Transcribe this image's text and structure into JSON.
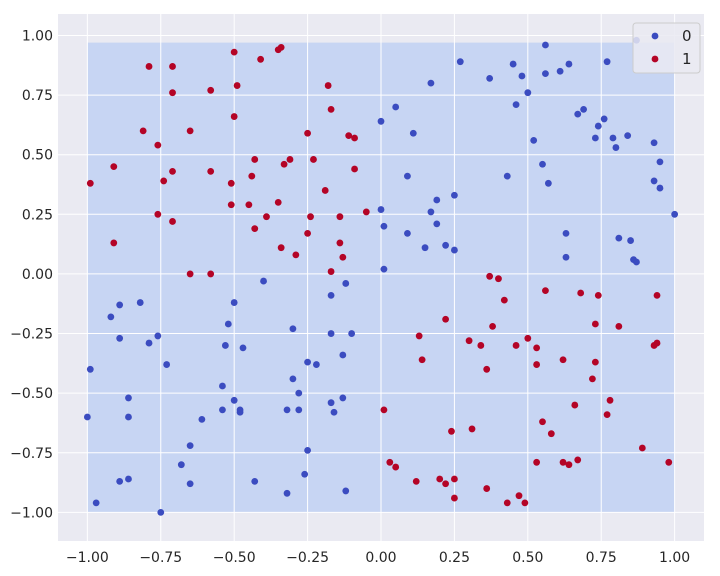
{
  "chart_data": {
    "type": "scatter",
    "title": "",
    "xlabel": "",
    "ylabel": "",
    "xlim": [
      -1.1,
      1.1
    ],
    "ylim": [
      -1.12,
      1.09
    ],
    "xticks": [
      -1.0,
      -0.75,
      -0.5,
      -0.25,
      0.0,
      0.25,
      0.5,
      0.75,
      1.0
    ],
    "xtick_labels": [
      "−1.00",
      "−0.75",
      "−0.50",
      "−0.25",
      "0.00",
      "0.25",
      "0.50",
      "0.75",
      "1.00"
    ],
    "yticks": [
      1.0,
      0.75,
      0.5,
      0.25,
      0.0,
      -0.25,
      -0.5,
      -0.75,
      -1.0
    ],
    "ytick_labels": [
      "1.00",
      "0.75",
      "0.50",
      "0.25",
      "0.00",
      "−0.25",
      "−0.50",
      "−0.75",
      "−1.00"
    ],
    "grid": true,
    "legend_position": "top-right",
    "background_region": {
      "x": [
        -1.0,
        1.0
      ],
      "y": [
        -1.0,
        0.97
      ],
      "color": "#c7d5f3"
    },
    "colors": {
      "panel": "#eaeaf2",
      "grid": "#ffffff",
      "class0": "#3b4cc0",
      "class1": "#b40426"
    },
    "series": [
      {
        "name": "0",
        "color": "#3b4cc0",
        "points": [
          [
            -1.0,
            -0.6
          ],
          [
            -0.99,
            -0.4
          ],
          [
            -0.97,
            -0.96
          ],
          [
            -0.92,
            -0.18
          ],
          [
            -0.89,
            -0.13
          ],
          [
            -0.89,
            -0.27
          ],
          [
            -0.89,
            -0.87
          ],
          [
            -0.86,
            -0.52
          ],
          [
            -0.86,
            -0.6
          ],
          [
            -0.86,
            -0.86
          ],
          [
            -0.82,
            -0.12
          ],
          [
            -0.79,
            -0.29
          ],
          [
            -0.76,
            -0.26
          ],
          [
            -0.75,
            -1.0
          ],
          [
            -0.73,
            -0.38
          ],
          [
            -0.68,
            -0.8
          ],
          [
            -0.65,
            -0.72
          ],
          [
            -0.65,
            -0.88
          ],
          [
            -0.61,
            -0.61
          ],
          [
            -0.54,
            -0.47
          ],
          [
            -0.54,
            -0.57
          ],
          [
            -0.53,
            -0.3
          ],
          [
            -0.52,
            -0.21
          ],
          [
            -0.5,
            -0.12
          ],
          [
            -0.5,
            -0.53
          ],
          [
            -0.48,
            -0.58
          ],
          [
            -0.48,
            -0.57
          ],
          [
            -0.47,
            -0.31
          ],
          [
            -0.43,
            -0.87
          ],
          [
            -0.4,
            -0.03
          ],
          [
            -0.32,
            -0.57
          ],
          [
            -0.32,
            -0.92
          ],
          [
            -0.3,
            -0.23
          ],
          [
            -0.3,
            -0.44
          ],
          [
            -0.28,
            -0.5
          ],
          [
            -0.28,
            -0.57
          ],
          [
            -0.26,
            -0.84
          ],
          [
            -0.25,
            -0.37
          ],
          [
            -0.25,
            -0.74
          ],
          [
            -0.22,
            -0.38
          ],
          [
            -0.17,
            -0.09
          ],
          [
            -0.17,
            -0.25
          ],
          [
            -0.17,
            -0.54
          ],
          [
            -0.16,
            -0.58
          ],
          [
            -0.13,
            -0.34
          ],
          [
            -0.13,
            -0.52
          ],
          [
            -0.12,
            -0.04
          ],
          [
            -0.12,
            -0.91
          ],
          [
            -0.1,
            -0.25
          ],
          [
            0.0,
            0.64
          ],
          [
            0.0,
            0.27
          ],
          [
            0.01,
            0.2
          ],
          [
            0.01,
            0.02
          ],
          [
            0.05,
            0.7
          ],
          [
            0.09,
            0.41
          ],
          [
            0.09,
            0.17
          ],
          [
            0.11,
            0.59
          ],
          [
            0.15,
            0.11
          ],
          [
            0.17,
            0.8
          ],
          [
            0.17,
            0.26
          ],
          [
            0.19,
            0.31
          ],
          [
            0.19,
            0.21
          ],
          [
            0.22,
            0.12
          ],
          [
            0.25,
            0.33
          ],
          [
            0.25,
            0.1
          ],
          [
            0.27,
            0.89
          ],
          [
            0.37,
            0.82
          ],
          [
            0.43,
            0.41
          ],
          [
            0.45,
            0.88
          ],
          [
            0.46,
            0.71
          ],
          [
            0.48,
            0.83
          ],
          [
            0.5,
            0.76
          ],
          [
            0.52,
            0.56
          ],
          [
            0.55,
            0.46
          ],
          [
            0.56,
            0.84
          ],
          [
            0.56,
            0.96
          ],
          [
            0.57,
            0.38
          ],
          [
            0.61,
            0.85
          ],
          [
            0.63,
            0.07
          ],
          [
            0.63,
            0.17
          ],
          [
            0.64,
            0.88
          ],
          [
            0.67,
            0.67
          ],
          [
            0.69,
            0.69
          ],
          [
            0.73,
            0.57
          ],
          [
            0.74,
            0.62
          ],
          [
            0.76,
            0.65
          ],
          [
            0.77,
            0.89
          ],
          [
            0.79,
            0.57
          ],
          [
            0.8,
            0.53
          ],
          [
            0.81,
            0.15
          ],
          [
            0.84,
            0.58
          ],
          [
            0.85,
            0.14
          ],
          [
            0.86,
            0.06
          ],
          [
            0.87,
            0.05
          ],
          [
            0.87,
            0.98
          ],
          [
            0.93,
            0.55
          ],
          [
            0.93,
            0.39
          ],
          [
            0.95,
            0.47
          ],
          [
            0.95,
            0.36
          ],
          [
            1.0,
            0.25
          ]
        ]
      },
      {
        "name": "1",
        "color": "#b40426",
        "points": [
          [
            -0.99,
            0.38
          ],
          [
            -0.91,
            0.45
          ],
          [
            -0.91,
            0.13
          ],
          [
            -0.81,
            0.6
          ],
          [
            -0.79,
            0.87
          ],
          [
            -0.76,
            0.54
          ],
          [
            -0.76,
            0.25
          ],
          [
            -0.74,
            0.39
          ],
          [
            -0.71,
            0.87
          ],
          [
            -0.71,
            0.76
          ],
          [
            -0.71,
            0.43
          ],
          [
            -0.71,
            0.22
          ],
          [
            -0.65,
            0.6
          ],
          [
            -0.65,
            0.0
          ],
          [
            -0.58,
            0.77
          ],
          [
            -0.58,
            0.43
          ],
          [
            -0.58,
            0.0
          ],
          [
            -0.51,
            0.38
          ],
          [
            -0.51,
            0.29
          ],
          [
            -0.5,
            0.93
          ],
          [
            -0.5,
            0.66
          ],
          [
            -0.49,
            0.79
          ],
          [
            -0.45,
            0.29
          ],
          [
            -0.44,
            0.41
          ],
          [
            -0.43,
            0.48
          ],
          [
            -0.43,
            0.19
          ],
          [
            -0.41,
            0.9
          ],
          [
            -0.39,
            0.24
          ],
          [
            -0.35,
            0.94
          ],
          [
            -0.35,
            0.3
          ],
          [
            -0.34,
            0.95
          ],
          [
            -0.34,
            0.11
          ],
          [
            -0.33,
            0.46
          ],
          [
            -0.31,
            0.48
          ],
          [
            -0.29,
            0.08
          ],
          [
            -0.25,
            0.59
          ],
          [
            -0.25,
            0.17
          ],
          [
            -0.24,
            0.24
          ],
          [
            -0.23,
            0.48
          ],
          [
            -0.19,
            0.35
          ],
          [
            -0.18,
            0.79
          ],
          [
            -0.17,
            0.69
          ],
          [
            -0.17,
            0.01
          ],
          [
            -0.14,
            0.13
          ],
          [
            -0.14,
            0.24
          ],
          [
            -0.13,
            0.07
          ],
          [
            -0.11,
            0.58
          ],
          [
            -0.09,
            0.57
          ],
          [
            -0.09,
            0.44
          ],
          [
            -0.05,
            0.26
          ],
          [
            0.01,
            -0.57
          ],
          [
            0.03,
            -0.79
          ],
          [
            0.05,
            -0.81
          ],
          [
            0.12,
            -0.87
          ],
          [
            0.13,
            -0.26
          ],
          [
            0.14,
            -0.36
          ],
          [
            0.2,
            -0.86
          ],
          [
            0.22,
            -0.19
          ],
          [
            0.22,
            -0.88
          ],
          [
            0.24,
            -0.66
          ],
          [
            0.25,
            -0.86
          ],
          [
            0.25,
            -0.94
          ],
          [
            0.3,
            -0.28
          ],
          [
            0.31,
            -0.65
          ],
          [
            0.34,
            -0.3
          ],
          [
            0.36,
            -0.9
          ],
          [
            0.36,
            -0.4
          ],
          [
            0.37,
            -0.01
          ],
          [
            0.38,
            -0.22
          ],
          [
            0.4,
            -0.02
          ],
          [
            0.42,
            -0.11
          ],
          [
            0.43,
            -0.96
          ],
          [
            0.46,
            -0.3
          ],
          [
            0.47,
            -0.93
          ],
          [
            0.49,
            -0.96
          ],
          [
            0.5,
            -0.27
          ],
          [
            0.53,
            -0.31
          ],
          [
            0.53,
            -0.38
          ],
          [
            0.53,
            -0.79
          ],
          [
            0.55,
            -0.62
          ],
          [
            0.56,
            -0.07
          ],
          [
            0.58,
            -0.67
          ],
          [
            0.62,
            -0.36
          ],
          [
            0.62,
            -0.79
          ],
          [
            0.64,
            -0.8
          ],
          [
            0.66,
            -0.55
          ],
          [
            0.67,
            -0.78
          ],
          [
            0.68,
            -0.08
          ],
          [
            0.72,
            -0.44
          ],
          [
            0.73,
            -0.21
          ],
          [
            0.73,
            -0.37
          ],
          [
            0.74,
            -0.09
          ],
          [
            0.77,
            -0.59
          ],
          [
            0.78,
            -0.53
          ],
          [
            0.81,
            -0.22
          ],
          [
            0.89,
            -0.73
          ],
          [
            0.93,
            -0.3
          ],
          [
            0.94,
            -0.09
          ],
          [
            0.94,
            -0.29
          ],
          [
            0.98,
            -0.79
          ]
        ]
      }
    ]
  }
}
